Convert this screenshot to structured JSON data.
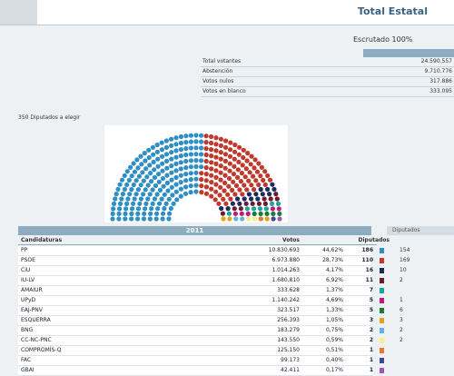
{
  "header": {
    "title": "Total Estatal"
  },
  "summary": {
    "escrutado": "Escrutado 100%",
    "rows": [
      {
        "label": "Total votantes",
        "value": "24.590.557"
      },
      {
        "label": "Abstención",
        "value": "9.710.776"
      },
      {
        "label": "Votos nulos",
        "value": "317.886"
      },
      {
        "label": "Votos en blanco",
        "value": "333.095"
      }
    ]
  },
  "diputados_label": "350 Diputados a elegir",
  "table": {
    "year": "2011",
    "prev_header": "Diputados",
    "headers": {
      "name": "Candidaturas",
      "votes": "Votos",
      "seats": "Diputados"
    },
    "rows": [
      {
        "name": "PP",
        "votes": "10.830.693",
        "pct": "44,62%",
        "seats": "186",
        "color": "#2f8fc4",
        "prev": "154"
      },
      {
        "name": "PSOE",
        "votes": "6.973.880",
        "pct": "28,73%",
        "seats": "110",
        "color": "#c0392b",
        "prev": "169"
      },
      {
        "name": "CiU",
        "votes": "1.014.263",
        "pct": "4,17%",
        "seats": "16",
        "color": "#1a2b5e",
        "prev": "10"
      },
      {
        "name": "IU-LV",
        "votes": "1.680.810",
        "pct": "6,92%",
        "seats": "11",
        "color": "#6e1a2e",
        "prev": "2"
      },
      {
        "name": "AMAIUR",
        "votes": "333.628",
        "pct": "1,37%",
        "seats": "7",
        "color": "#16a6a0",
        "prev": ""
      },
      {
        "name": "UPyD",
        "votes": "1.140.242",
        "pct": "4,69%",
        "seats": "5",
        "color": "#c2187a",
        "prev": "1"
      },
      {
        "name": "EAJ-PNV",
        "votes": "323.517",
        "pct": "1,33%",
        "seats": "5",
        "color": "#1e7a3c",
        "prev": "6"
      },
      {
        "name": "ESQUERRA",
        "votes": "256.393",
        "pct": "1,05%",
        "seats": "3",
        "color": "#e8a21a",
        "prev": "3"
      },
      {
        "name": "BNG",
        "votes": "183.279",
        "pct": "0,75%",
        "seats": "2",
        "color": "#5ab4e5",
        "prev": "2"
      },
      {
        "name": "CC-NC-PNC",
        "votes": "143.550",
        "pct": "0,59%",
        "seats": "2",
        "color": "#f5ef8a",
        "prev": "2"
      },
      {
        "name": "COMPROMÍS-Q",
        "votes": "125.150",
        "pct": "0,51%",
        "seats": "1",
        "color": "#e8782a",
        "prev": ""
      },
      {
        "name": "FAC",
        "votes": "99.173",
        "pct": "0,40%",
        "seats": "1",
        "color": "#3b4a8c",
        "prev": ""
      },
      {
        "name": "GBAI",
        "votes": "42.411",
        "pct": "0,17%",
        "seats": "1",
        "color": "#9b59b6",
        "prev": ""
      }
    ]
  }
}
